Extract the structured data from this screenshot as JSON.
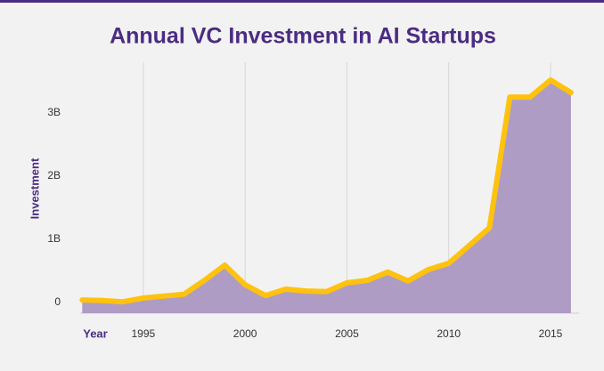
{
  "chart_data": {
    "type": "area",
    "title": "Annual VC Investment in AI Startups",
    "xlabel": "Year",
    "ylabel": "Investment",
    "x": [
      1992,
      1993,
      1994,
      1995,
      1996,
      1997,
      1998,
      1999,
      2000,
      2001,
      2002,
      2003,
      2004,
      2005,
      2006,
      2007,
      2008,
      2009,
      2010,
      2011,
      2012,
      2013,
      2014,
      2015,
      2016
    ],
    "series": [
      {
        "name": "Investment",
        "color": "#ffc20e",
        "fill": "#ae9cc5",
        "values": [
          40000000,
          30000000,
          10000000,
          70000000,
          100000000,
          130000000,
          350000000,
          590000000,
          280000000,
          110000000,
          210000000,
          180000000,
          170000000,
          310000000,
          350000000,
          480000000,
          340000000,
          520000000,
          620000000,
          900000000,
          1180000000,
          3250000000,
          3250000000,
          3520000000,
          3320000000
        ]
      }
    ],
    "xlim": [
      1991.9,
      2016.4
    ],
    "xticks": [
      1995,
      2000,
      2005,
      2010,
      2015
    ],
    "ylim": [
      -170000000,
      3800000000
    ],
    "yticks": [
      0,
      {
        "value": 1000000000,
        "label": "1B"
      },
      {
        "value": 2000000000,
        "label": "2B"
      },
      {
        "value": 3000000000,
        "label": "3B"
      }
    ],
    "grid": "x"
  }
}
